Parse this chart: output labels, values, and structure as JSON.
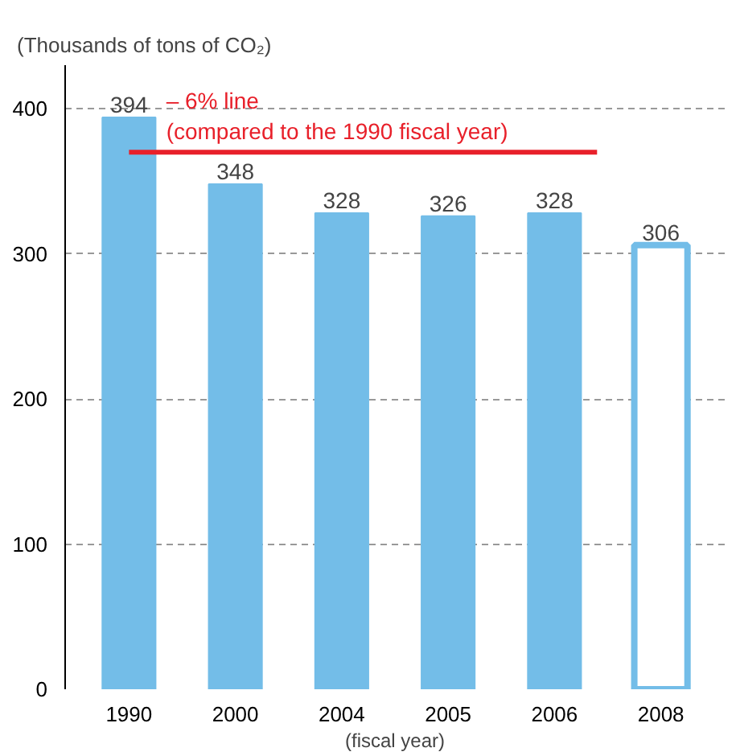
{
  "chart_data": {
    "type": "bar",
    "ylabel": "(Thousands of tons of CO₂)",
    "xlabel": "(fiscal year)",
    "categories": [
      "1990",
      "2000",
      "2004",
      "2005",
      "2006",
      "2008"
    ],
    "series": [
      {
        "color": "#73bde8",
        "values": [
          394,
          348,
          328,
          326,
          328,
          null
        ]
      },
      {
        "color": "#73bde8",
        "values": [
          null,
          null,
          null,
          null,
          null,
          306
        ]
      }
    ],
    "ylim": [
      0,
      430
    ],
    "yticks": [
      0,
      100,
      200,
      300,
      400
    ],
    "grid": "y",
    "data_labels": true,
    "ref_lines": [
      {
        "axis": "y",
        "value": 370,
        "label": "– 6% line\n(compared to the 1990 fiscal year)",
        "color": "#e8202a",
        "line_style": "solid"
      }
    ]
  }
}
